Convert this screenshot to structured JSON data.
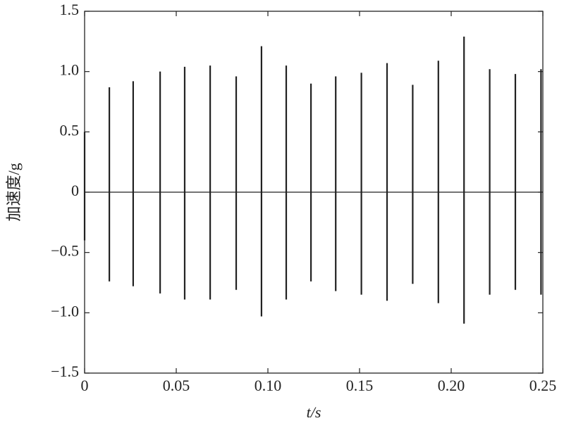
{
  "chart_data": {
    "type": "impulse",
    "x_label": "t/s",
    "y_label": "加速度/g",
    "x": [
      0.0,
      0.0135,
      0.0265,
      0.0412,
      0.0546,
      0.0685,
      0.0827,
      0.0965,
      0.11,
      0.1235,
      0.137,
      0.151,
      0.165,
      0.179,
      0.193,
      0.207,
      0.221,
      0.235,
      0.249
    ],
    "peaks": [
      0.5,
      0.87,
      0.92,
      1.0,
      1.04,
      1.05,
      0.96,
      1.21,
      1.05,
      0.9,
      0.96,
      0.99,
      1.07,
      0.89,
      1.09,
      1.29,
      1.02,
      0.98,
      1.02
    ],
    "troughs": [
      -0.4,
      -0.74,
      -0.78,
      -0.84,
      -0.89,
      -0.89,
      -0.81,
      -1.03,
      -0.89,
      -0.74,
      -0.82,
      -0.85,
      -0.9,
      -0.76,
      -0.92,
      -1.09,
      -0.85,
      -0.81,
      -0.85
    ],
    "color": "#222222",
    "xlim": [
      0,
      0.25
    ],
    "xticks": [
      0,
      0.05,
      {
        "value": 0.1,
        "label": "0.10"
      },
      0.15,
      {
        "value": 0.2,
        "label": "0.20"
      },
      0.25
    ],
    "ylim": [
      -1.5,
      1.5
    ],
    "yticks": [
      {
        "value": 1.5,
        "label": "1.5"
      },
      {
        "value": 1.0,
        "label": "1.0"
      },
      0.5,
      0,
      {
        "value": -0.5,
        "label": "−0.5"
      },
      {
        "value": -1.0,
        "label": "−1.0"
      },
      {
        "value": -1.5,
        "label": "−1.5"
      }
    ]
  }
}
